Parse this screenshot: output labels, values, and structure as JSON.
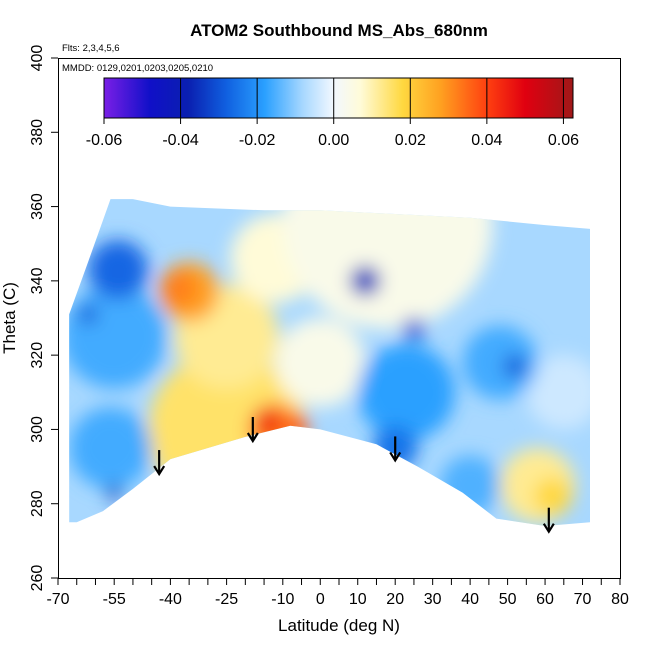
{
  "chart_data": {
    "type": "heatmap",
    "title": "ATOM2 Southbound MS_Abs_680nm",
    "annotations": [
      "Flts: 2,3,4,5,6",
      "MMDD: 0129,0201,0203,0205,0210"
    ],
    "xlabel": "Latitude (deg N)",
    "ylabel": "Theta (C)",
    "xlim": [
      -70,
      80
    ],
    "ylim": [
      260,
      400
    ],
    "x_ticks": [
      -70,
      -55,
      -40,
      -25,
      -10,
      0,
      10,
      20,
      30,
      40,
      50,
      60,
      70,
      80
    ],
    "x_tick_labels": [
      "-70",
      "-55",
      "-40",
      "-25",
      "-10",
      "0",
      "10",
      "20",
      "30",
      "40",
      "50",
      "60",
      "70",
      "80"
    ],
    "x_minor_ticks": [
      -65,
      -60,
      -50,
      -45,
      -35,
      -30,
      -20,
      -15,
      -5,
      5,
      15,
      25,
      35,
      45,
      55,
      65,
      75
    ],
    "y_ticks": [
      260,
      280,
      300,
      320,
      340,
      360,
      380,
      400
    ],
    "y_tick_labels": [
      "260",
      "280",
      "300",
      "320",
      "340",
      "360",
      "380",
      "400"
    ],
    "colorbar": {
      "range": [
        -0.06,
        0.0625
      ],
      "ticks": [
        -0.06,
        -0.04,
        -0.02,
        0.0,
        0.02,
        0.04,
        0.06
      ],
      "tick_labels": [
        "-0.06",
        "-0.04",
        "-0.02",
        "0.00",
        "0.02",
        "0.04",
        "0.06"
      ],
      "stops": [
        {
          "v": -0.06,
          "color": "#7a1fe6"
        },
        {
          "v": -0.048,
          "color": "#1010c8"
        },
        {
          "v": -0.038,
          "color": "#0a1fb0"
        },
        {
          "v": -0.028,
          "color": "#1060e0"
        },
        {
          "v": -0.018,
          "color": "#2aa0ff"
        },
        {
          "v": -0.008,
          "color": "#a8d8ff"
        },
        {
          "v": 0.0,
          "color": "#f2f8ff"
        },
        {
          "v": 0.007,
          "color": "#fffbd8"
        },
        {
          "v": 0.018,
          "color": "#ffd840"
        },
        {
          "v": 0.028,
          "color": "#ffa020"
        },
        {
          "v": 0.04,
          "color": "#ff4010"
        },
        {
          "v": 0.05,
          "color": "#e00010"
        },
        {
          "v": 0.0625,
          "color": "#a01818"
        }
      ]
    },
    "data_extent": {
      "top": [
        [
          -67,
          331
        ],
        [
          -62,
          345
        ],
        [
          -56,
          362
        ],
        [
          -50,
          362
        ],
        [
          -40,
          360
        ],
        [
          -15,
          359
        ],
        [
          0,
          359
        ],
        [
          20,
          358
        ],
        [
          40,
          357
        ],
        [
          60,
          355
        ],
        [
          72,
          354
        ]
      ],
      "bottom": [
        [
          72,
          275
        ],
        [
          60,
          274
        ],
        [
          47,
          276
        ],
        [
          38,
          283
        ],
        [
          26,
          290
        ],
        [
          15,
          296
        ],
        [
          0,
          300
        ],
        [
          -8,
          301
        ],
        [
          -20,
          298
        ],
        [
          -30,
          295
        ],
        [
          -40,
          292
        ],
        [
          -50,
          284
        ],
        [
          -58,
          278
        ],
        [
          -65,
          275
        ],
        [
          -67,
          275
        ]
      ]
    },
    "regions": [
      {
        "cx": -25,
        "cy": 300,
        "r": 21,
        "value": 0.015
      },
      {
        "cx": -25,
        "cy": 325,
        "r": 14,
        "value": 0.012
      },
      {
        "cx": -35,
        "cy": 337,
        "r": 8,
        "value": 0.028
      },
      {
        "cx": -38,
        "cy": 338,
        "r": 5,
        "value": 0.032
      },
      {
        "cx": -12,
        "cy": 300,
        "r": 7,
        "value": 0.032
      },
      {
        "cx": -14,
        "cy": 302,
        "r": 3.5,
        "value": 0.045
      },
      {
        "cx": -6,
        "cy": 301,
        "r": 3,
        "value": 0.038
      },
      {
        "cx": -12,
        "cy": 346,
        "r": 12,
        "value": 0.007
      },
      {
        "cx": 0,
        "cy": 318,
        "r": 12,
        "value": 0.004
      },
      {
        "cx": 18,
        "cy": 355,
        "r": 28,
        "value": 0.004
      },
      {
        "cx": 58,
        "cy": 285,
        "r": 10,
        "value": 0.012
      },
      {
        "cx": 62,
        "cy": 282,
        "r": 5,
        "value": 0.018
      },
      {
        "cx": 65,
        "cy": 310,
        "r": 10,
        "value": -0.004
      },
      {
        "cx": -55,
        "cy": 325,
        "r": 14,
        "value": -0.016
      },
      {
        "cx": -54,
        "cy": 343,
        "r": 8,
        "value": -0.027
      },
      {
        "cx": -56,
        "cy": 295,
        "r": 11,
        "value": -0.016
      },
      {
        "cx": 23,
        "cy": 310,
        "r": 13,
        "value": -0.018
      },
      {
        "cx": 20,
        "cy": 295,
        "r": 6,
        "value": -0.025
      },
      {
        "cx": 48,
        "cy": 318,
        "r": 10,
        "value": -0.016
      },
      {
        "cx": 40,
        "cy": 285,
        "r": 8,
        "value": -0.015
      },
      {
        "cx": 12,
        "cy": 340,
        "r": 4,
        "value": -0.035
      },
      {
        "cx": 25,
        "cy": 327,
        "r": 3,
        "value": -0.03
      },
      {
        "cx": 52,
        "cy": 317,
        "r": 3,
        "value": -0.03
      },
      {
        "cx": -55,
        "cy": 283,
        "r": 2,
        "value": -0.04
      },
      {
        "cx": -62,
        "cy": 331,
        "r": 2.5,
        "value": -0.03
      }
    ],
    "base_value": -0.008,
    "arrows_lat": [
      -43,
      -18,
      20,
      61
    ]
  }
}
